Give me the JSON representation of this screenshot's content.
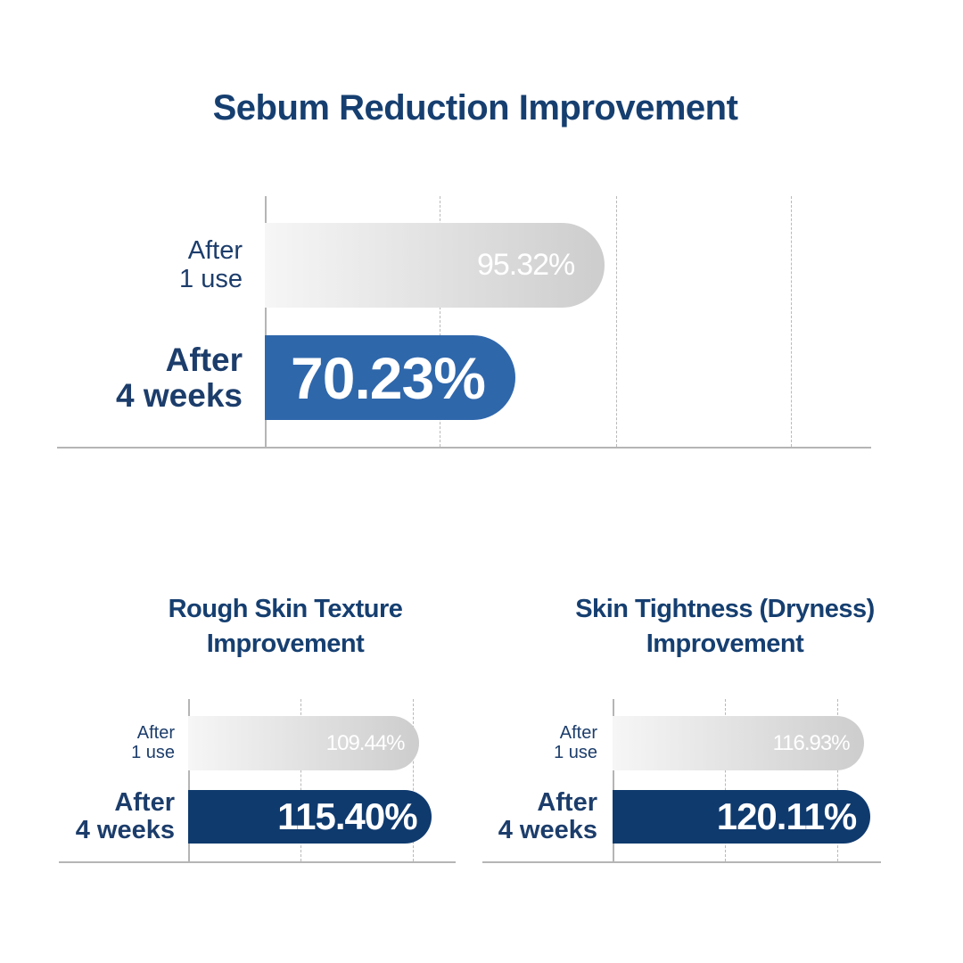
{
  "chart_data": [
    {
      "type": "bar",
      "orientation": "horizontal",
      "title": "Sebum Reduction Improvement",
      "categories": [
        "After\n1 use",
        "After\n4 weeks"
      ],
      "values": [
        95.32,
        70.23
      ],
      "value_labels": [
        "95.32%",
        "70.23%"
      ],
      "colors": [
        "#cdcdcd",
        "#2f67ab"
      ],
      "xlim": [
        0,
        170
      ],
      "gridlines": [
        49,
        98.5,
        147.5
      ],
      "grid": true
    },
    {
      "type": "bar",
      "orientation": "horizontal",
      "title": "Rough Skin Texture\nImprovement",
      "categories": [
        "After\n1 use",
        "After\n4 weeks"
      ],
      "values": [
        109.44,
        115.4
      ],
      "value_labels": [
        "109.44%",
        "115.40%"
      ],
      "colors": [
        "#cdcdcd",
        "#0f3a6e"
      ],
      "xlim": [
        0,
        127
      ],
      "gridlines": [
        53.4,
        106.8
      ],
      "grid": true
    },
    {
      "type": "bar",
      "orientation": "horizontal",
      "title": "Skin Tightness (Dryness)\nImprovement",
      "categories": [
        "After\n1 use",
        "After\n4 weeks"
      ],
      "values": [
        116.93,
        120.11
      ],
      "value_labels": [
        "116.93%",
        "120.11%"
      ],
      "colors": [
        "#cdcdcd",
        "#0f3a6e"
      ],
      "xlim": [
        0,
        125
      ],
      "gridlines": [
        52.3,
        104.6
      ],
      "grid": true
    }
  ]
}
